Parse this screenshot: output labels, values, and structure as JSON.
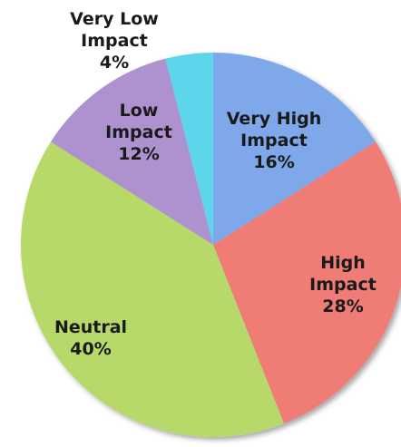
{
  "chart_data": {
    "type": "pie",
    "start_angle": "12 o'clock, clockwise",
    "slices": [
      {
        "label": [
          "Very High",
          "Impact",
          "16%"
        ],
        "name": "Very High Impact",
        "value": 16,
        "color": "#7fa8ea"
      },
      {
        "label": [
          "High",
          "Impact",
          "28%"
        ],
        "name": "High Impact",
        "value": 28,
        "color": "#ef7c74"
      },
      {
        "label": [
          "Neutral",
          "40%"
        ],
        "name": "Neutral",
        "value": 40,
        "color": "#b6d96a"
      },
      {
        "label": [
          "Low",
          "Impact",
          "12%"
        ],
        "name": "Low Impact",
        "value": 12,
        "color": "#ad92cf"
      },
      {
        "label": [
          "Very Low",
          "Impact",
          "4%"
        ],
        "name": "Very Low Impact",
        "value": 4,
        "color": "#5dd6ec"
      }
    ]
  }
}
